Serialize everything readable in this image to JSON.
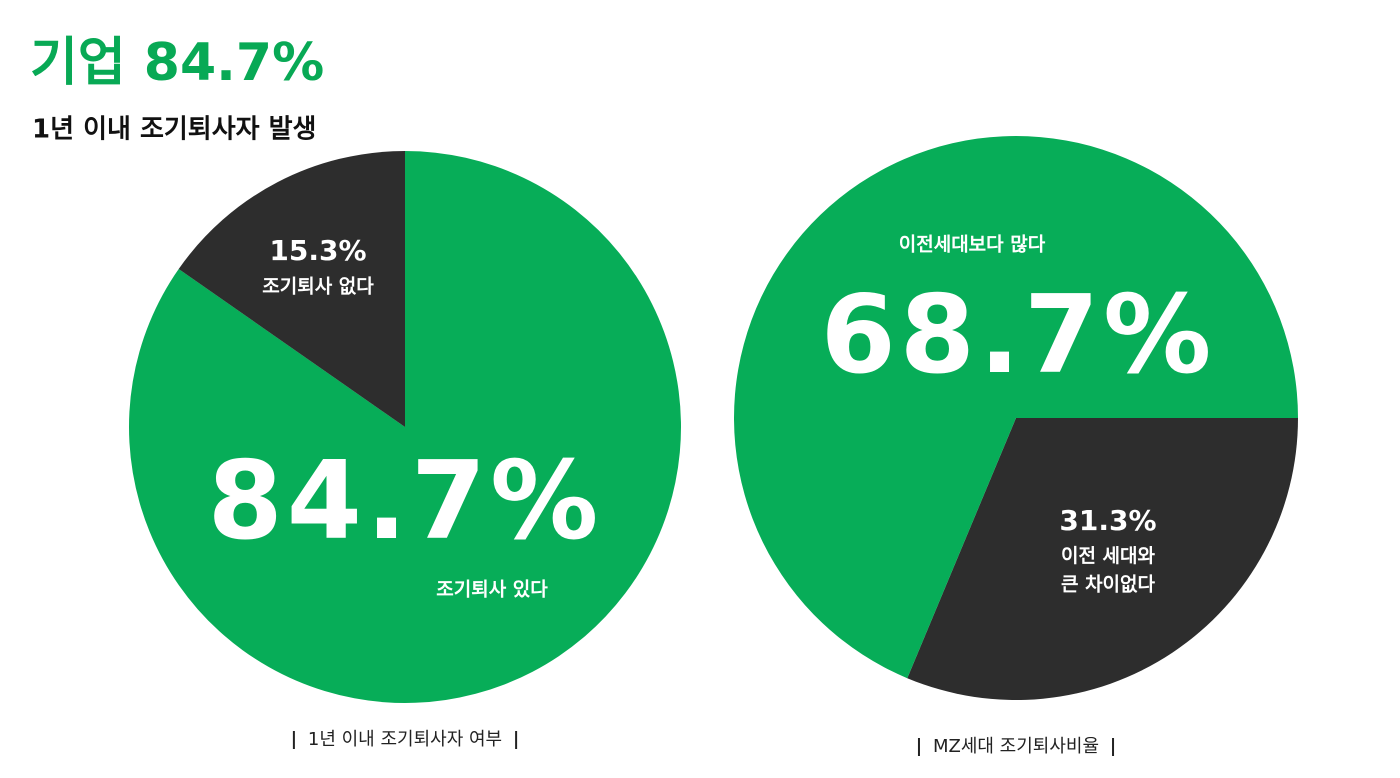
{
  "header": {
    "title": "기업 84.7%",
    "subtitle": "1년 이내 조기퇴사자 발생"
  },
  "chart_data": [
    {
      "type": "pie",
      "title": "1년 이내 조기퇴사자 여부",
      "categories": [
        "조기퇴사 있다",
        "조기퇴사 없다"
      ],
      "values": [
        84.7,
        15.3
      ],
      "value_labels": [
        "84.7%",
        "15.3%"
      ],
      "colors": [
        "#07ad58",
        "#2d2d2d"
      ],
      "startangle": 0,
      "direction": "clockwise"
    },
    {
      "type": "pie",
      "title": "MZ세대 조기퇴사비율",
      "categories": [
        "이전 세대와\n큰 차이없다",
        "이전세대보다 많다"
      ],
      "values": [
        31.3,
        68.7
      ],
      "value_labels": [
        "31.3%",
        "68.7%"
      ],
      "colors": [
        "#2d2d2d",
        "#07ad58"
      ],
      "startangle": 90,
      "direction": "clockwise"
    }
  ]
}
